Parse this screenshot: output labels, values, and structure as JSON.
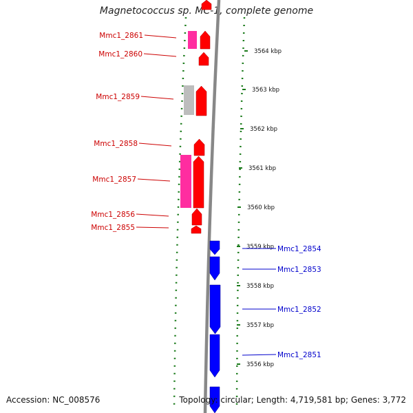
{
  "title": "Magnetococcus sp. MC-1, complete genome",
  "accession": "Accession: NC_008576",
  "topology": "Topology: circular; Length: 4,719,581 bp; Genes: 3,772",
  "colors": {
    "forward_gene": "#ff0000",
    "reverse_gene": "#0000ff",
    "pink_gene": "#ff2da0",
    "grey_gene": "#bdbdbd",
    "left_label": "#cc0000",
    "right_label": "#0000cc",
    "tick": "#1a7a1a",
    "backbone": "#888888"
  },
  "ticks": [
    {
      "label": "3564 kbp"
    },
    {
      "label": "3563 kbp"
    },
    {
      "label": "3562 kbp"
    },
    {
      "label": "3561 kbp"
    },
    {
      "label": "3560 kbp"
    },
    {
      "label": "3559 kbp"
    },
    {
      "label": "3558 kbp"
    },
    {
      "label": "3557 kbp"
    },
    {
      "label": "3556 kbp"
    }
  ],
  "left_labels": [
    "Mmc1_2861",
    "Mmc1_2860",
    "Mmc1_2859",
    "Mmc1_2858",
    "Mmc1_2857",
    "Mmc1_2856",
    "Mmc1_2855"
  ],
  "right_labels": [
    "Mmc1_2854",
    "Mmc1_2853",
    "Mmc1_2852",
    "Mmc1_2851"
  ]
}
